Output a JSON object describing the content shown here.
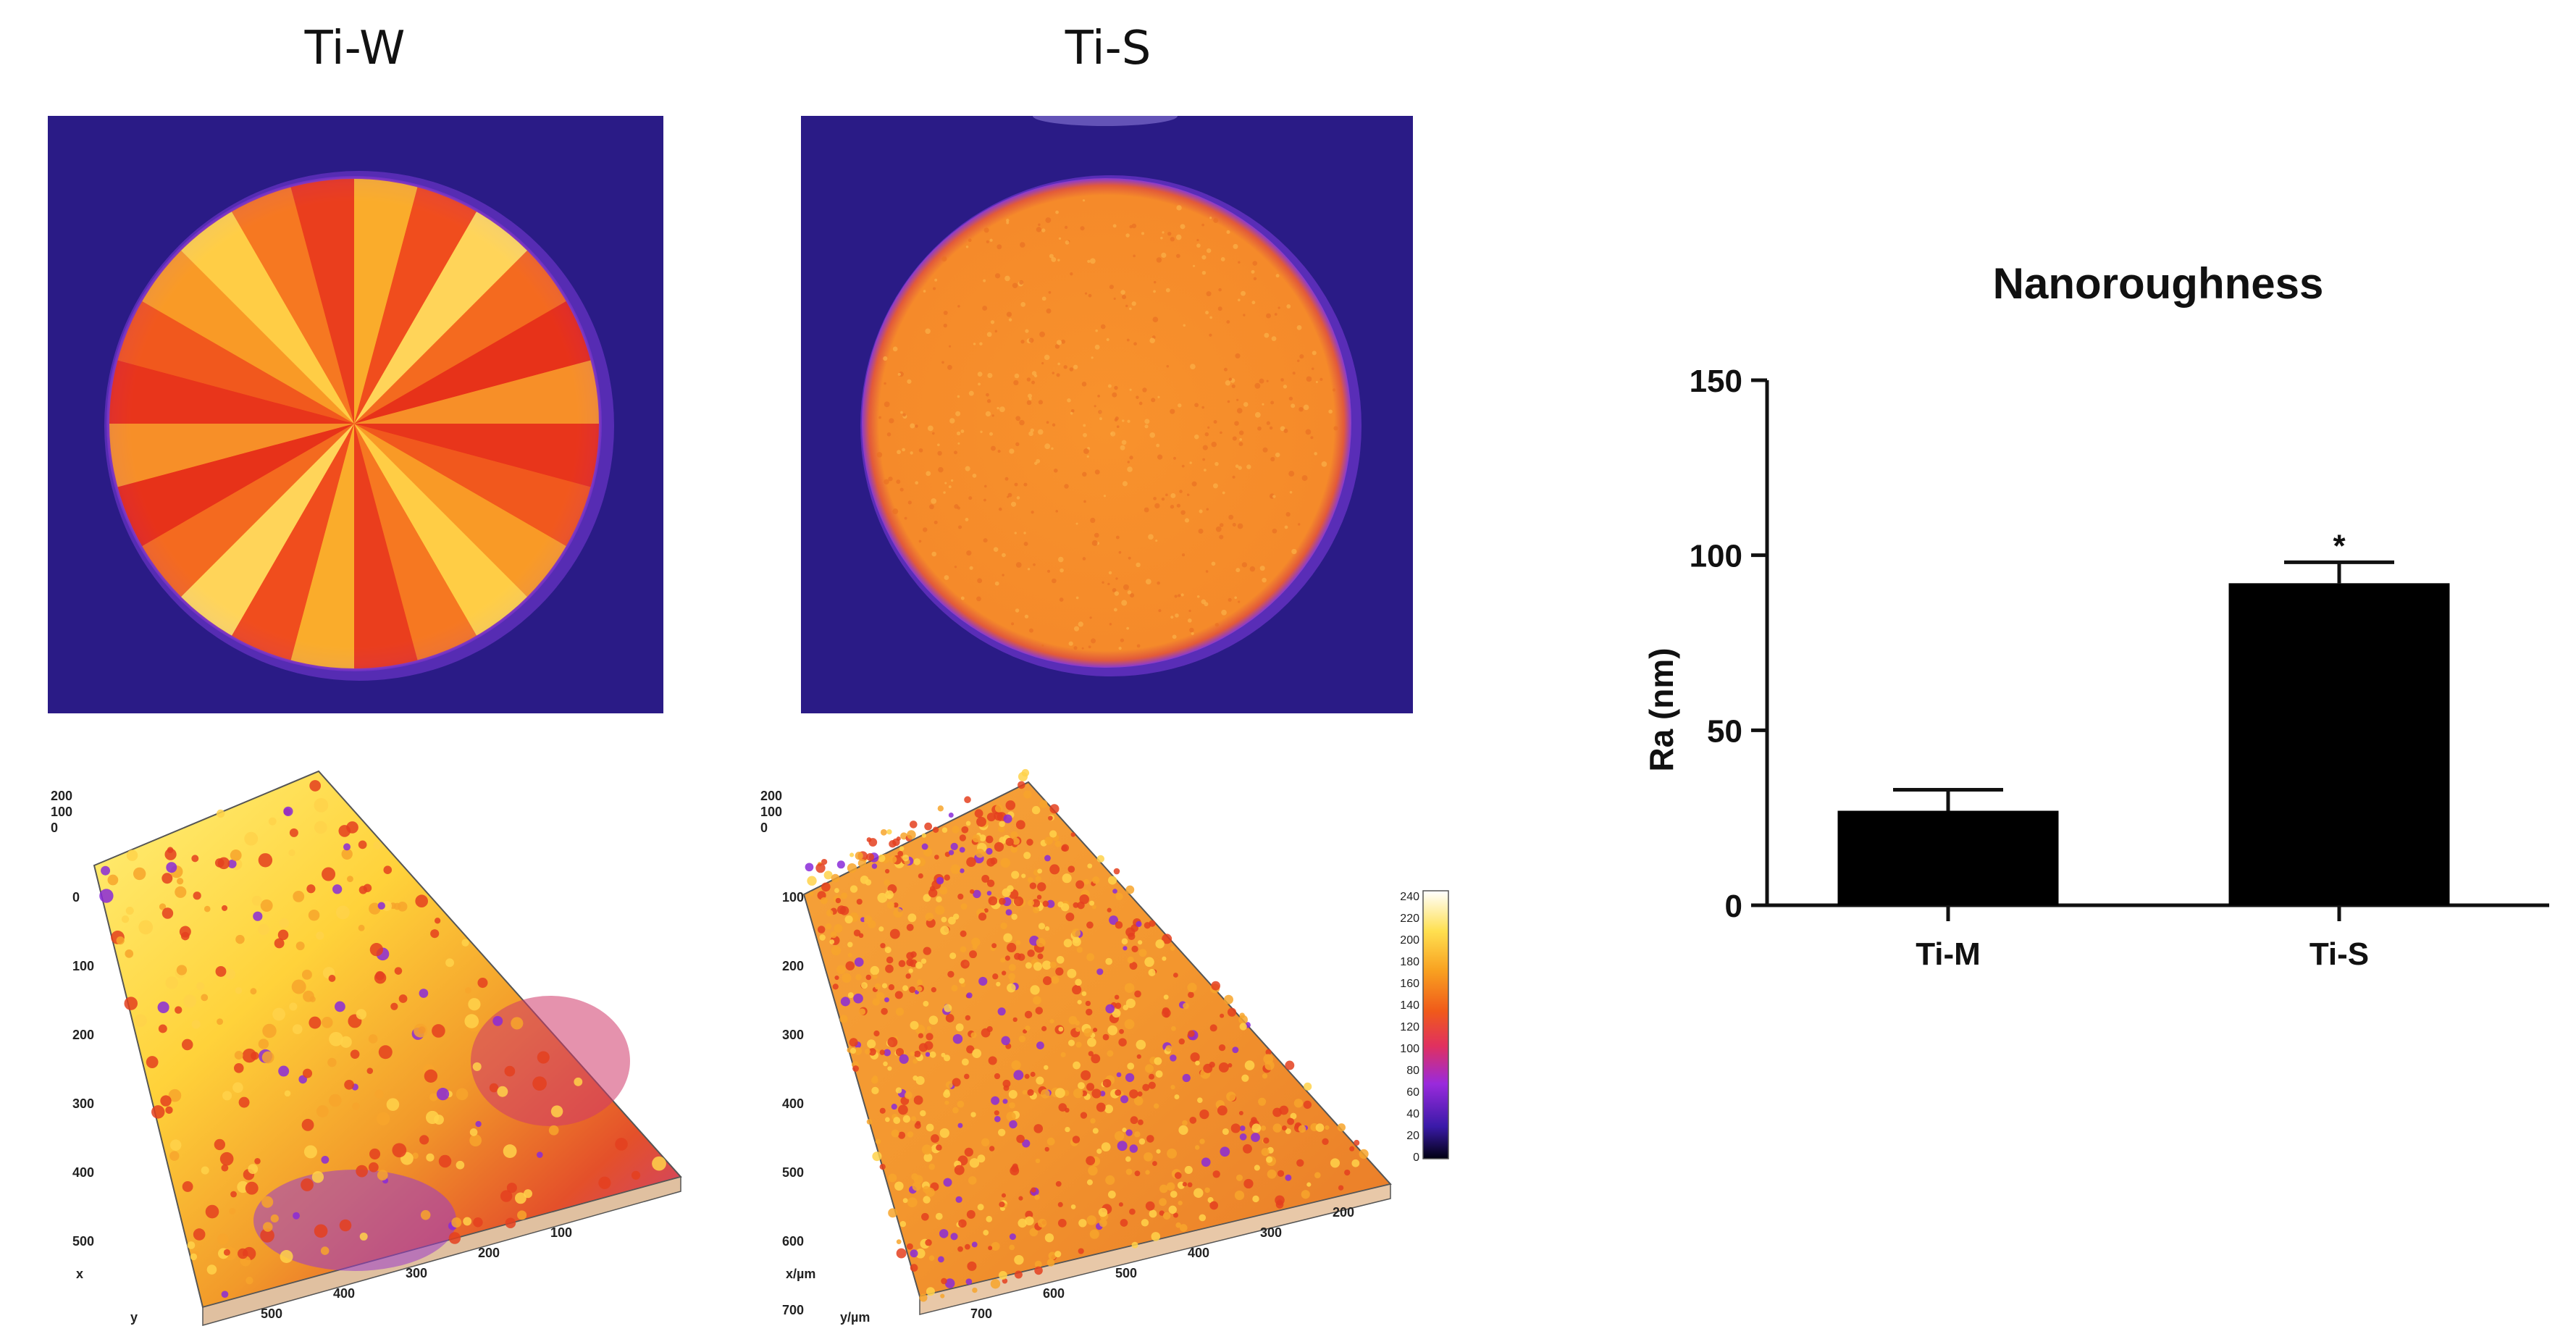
{
  "panels": {
    "left_title": "Ti-W",
    "right_title": "Ti-S"
  },
  "surface_axes": {
    "z_ticks": [
      "200",
      "100",
      "0"
    ],
    "x_ticks_w": [
      "100",
      "200",
      "300",
      "400",
      "500"
    ],
    "y_ticks_w": [
      "500",
      "400",
      "300",
      "200",
      "100",
      "0"
    ],
    "x_ticks_s": [
      "100",
      "200",
      "300",
      "400",
      "500",
      "600",
      "700"
    ],
    "y_ticks_s": [
      "700",
      "600",
      "500",
      "400",
      "300",
      "200",
      "100"
    ],
    "axis_label_s": "x/µm",
    "axis_label_s_y": "y/µm",
    "axis_label_x": "x",
    "axis_label_y": "y"
  },
  "colorbar": {
    "ticks": [
      "240",
      "220",
      "200",
      "180",
      "160",
      "140",
      "120",
      "100",
      "80",
      "60",
      "40",
      "20",
      "0"
    ]
  },
  "colors": {
    "background_dark": "#2a1b86",
    "disc_red": "#e8341c",
    "disc_orange": "#f7931e",
    "disc_yellow": "#ffe04a",
    "bar_fill": "#000000"
  },
  "chart_data": {
    "type": "bar",
    "title": "Nanoroughness",
    "ylabel": "Ra (nm)",
    "xlabel": "",
    "categories": [
      "Ti-M",
      "Ti-S"
    ],
    "values": [
      27,
      92
    ],
    "errors": [
      6,
      6
    ],
    "annotations": [
      "",
      "*"
    ],
    "ylim": [
      0,
      150
    ],
    "yticks": [
      0,
      50,
      100,
      150
    ],
    "ytick_labels": [
      "0",
      "50",
      "100",
      "150"
    ],
    "grid": false
  }
}
